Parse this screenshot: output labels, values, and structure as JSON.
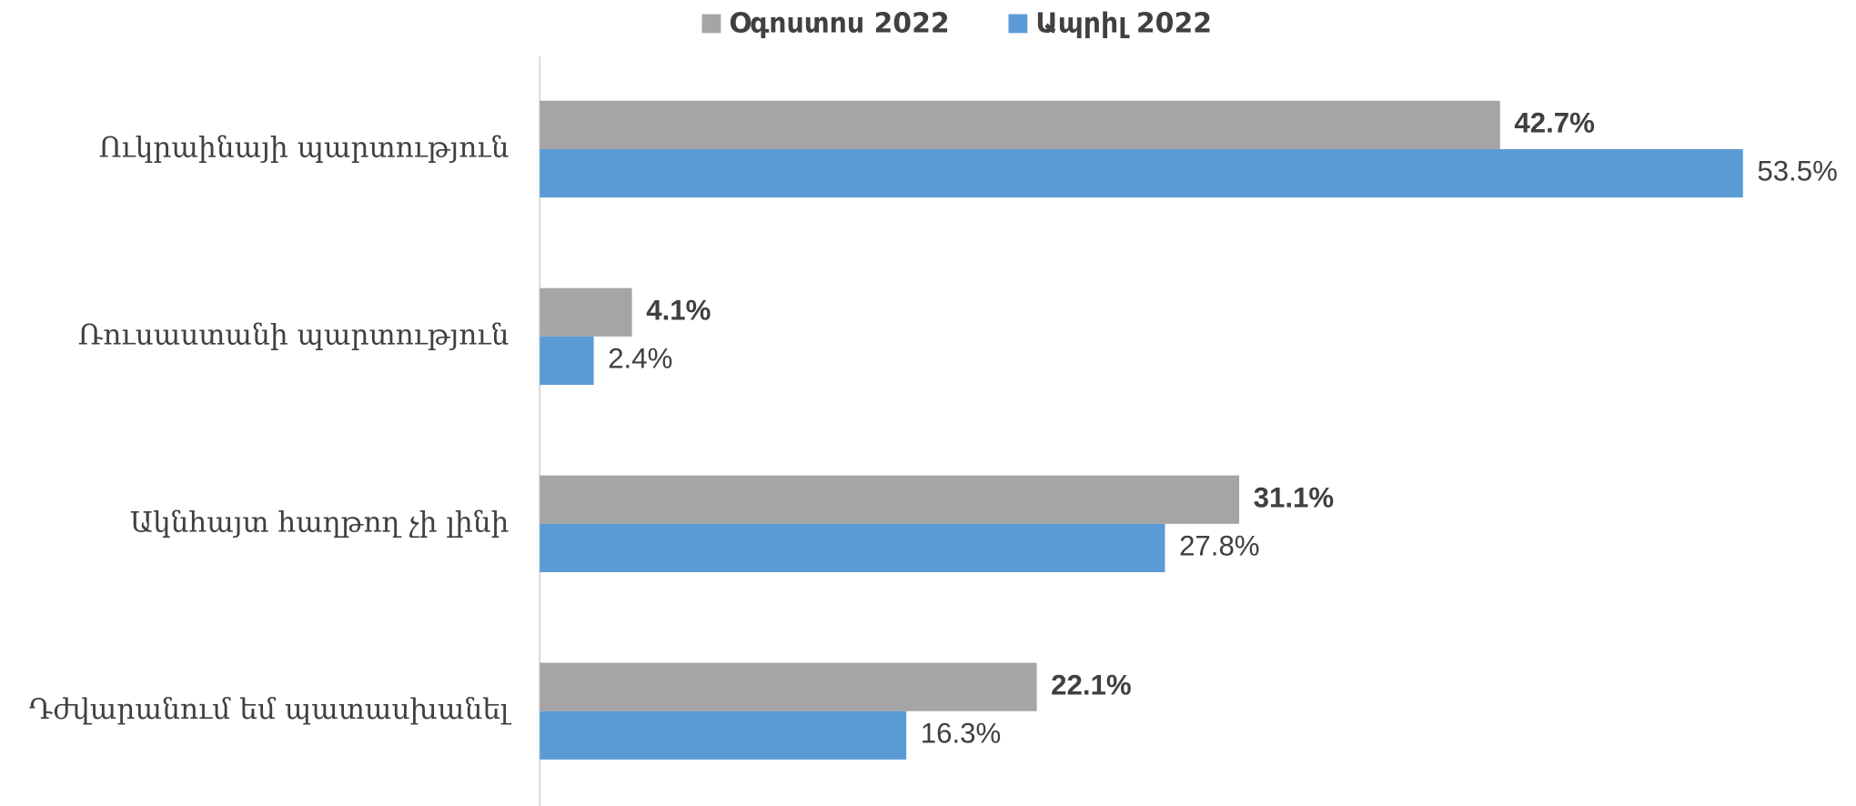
{
  "chart_data": {
    "type": "bar",
    "orientation": "horizontal",
    "categories": [
      "Ուկրաինայի պարտություն",
      "Ռուսաստանի պարտություն",
      "Ակնհայտ հաղթող չի լինի",
      "Դժվարանում եմ պատասխանել"
    ],
    "series": [
      {
        "name": "Օգոստոս 2022",
        "color": "#a5a5a5",
        "values": [
          42.7,
          4.1,
          31.1,
          22.1
        ],
        "value_labels": [
          "42.7%",
          "4.1%",
          "31.1%",
          "22.1%"
        ]
      },
      {
        "name": "Ապրիլ 2022",
        "color": "#5b9bd5",
        "values": [
          53.5,
          2.4,
          27.8,
          16.3
        ],
        "value_labels": [
          "53.5%",
          "2.4%",
          "27.8%",
          "16.3%"
        ]
      }
    ],
    "xlim": [
      0,
      58
    ],
    "legend": "top"
  }
}
